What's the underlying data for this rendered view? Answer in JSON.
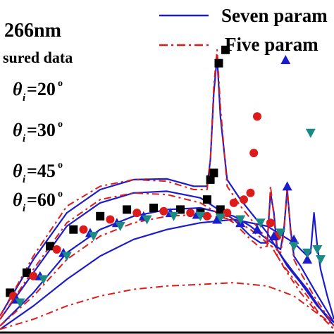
{
  "chart_data": {
    "type": "line",
    "title": "",
    "xlabel": "",
    "ylabel": "",
    "xlim": [
      0,
      100
    ],
    "ylim": [
      0,
      100
    ],
    "grid": false,
    "legend_placement": "top-right",
    "texts": {
      "wavelength": "266nm",
      "measured": "sured data",
      "legend_seven": "Seven  param",
      "legend_five": "Five  param"
    },
    "angle_labels": [
      {
        "symbol": "θ",
        "sub": "i",
        "value": "=20",
        "sup": "o"
      },
      {
        "symbol": "θ",
        "sub": "i",
        "value": "=30",
        "sup": "o"
      },
      {
        "symbol": "θ",
        "sub": "i",
        "value": "=45",
        "sup": "o"
      },
      {
        "symbol": "θ",
        "sub": "i",
        "value": "=60",
        "sup": "o"
      }
    ],
    "colors": {
      "seven": "#1c1ccc",
      "five": "#dd1b1b",
      "m20": "#000000",
      "m30": "#dd1b1b",
      "m45": "#1c1ccc",
      "m60": "#1a8a85"
    },
    "series": [
      {
        "name": "Seven  param",
        "style": "solid",
        "curves": [
          {
            "angle": 20,
            "x": [
              0,
              10,
              20,
              30,
              40,
              50,
              58,
              62,
              63,
              64,
              65,
              66,
              68,
              72,
              80,
              86,
              90,
              95,
              100
            ],
            "y": [
              5,
              22,
              36,
              43,
              46,
              46.2,
              44,
              44,
              52,
              72,
              83,
              65,
              46,
              40,
              30,
              20,
              15,
              8,
              3
            ]
          },
          {
            "angle": 30,
            "x": [
              0,
              10,
              20,
              30,
              40,
              50,
              60,
              70,
              75,
              78,
              80,
              81,
              82,
              83,
              85,
              88,
              92,
              96,
              100
            ],
            "y": [
              4,
              18,
              32,
              39,
              42,
              42.5,
              40.5,
              34,
              29,
              27,
              27,
              42,
              36,
              25,
              22,
              18,
              13,
              7,
              2
            ]
          },
          {
            "angle": 45,
            "x": [
              0,
              10,
              20,
              30,
              40,
              50,
              60,
              70,
              75,
              80,
              84,
              85,
              86,
              87,
              88,
              90,
              94,
              100
            ],
            "y": [
              2,
              12,
              24,
              31,
              35,
              37,
              37.5,
              35,
              32,
              28,
              25,
              31,
              43,
              31,
              23,
              20,
              13,
              3
            ]
          },
          {
            "angle": 60,
            "x": [
              0,
              10,
              20,
              30,
              40,
              50,
              60,
              70,
              80,
              88,
              92,
              93,
              94,
              95,
              96,
              98,
              100
            ],
            "y": [
              1,
              8,
              16,
              23,
              28,
              31,
              33,
              34,
              32,
              27,
              23,
              24,
              36,
              26,
              19,
              11,
              4
            ]
          }
        ]
      },
      {
        "name": "Five  param",
        "style": "dash-dot",
        "curves": [
          {
            "angle": 20,
            "x": [
              0,
              10,
              20,
              30,
              40,
              50,
              58,
              62,
              63,
              64,
              65,
              66,
              68,
              72,
              80,
              86,
              90,
              95,
              100
            ],
            "y": [
              5,
              23,
              38,
              44,
              46,
              45.5,
              43,
              43,
              52,
              74,
              85,
              68,
              44,
              38,
              28,
              18,
              12,
              6,
              2
            ]
          },
          {
            "angle": 30,
            "x": [
              0,
              10,
              20,
              30,
              40,
              50,
              60,
              70,
              75,
              78,
              80,
              81,
              82,
              83,
              85,
              88,
              92,
              96,
              100
            ],
            "y": [
              4,
              19,
              33,
              40,
              42,
              41.5,
              39,
              33,
              28,
              25.5,
              26,
              44,
              35,
              23,
              20,
              16,
              11,
              5,
              1
            ]
          },
          {
            "angle": 45,
            "x": [
              0,
              10,
              20,
              30,
              40,
              50,
              60,
              70,
              75,
              80,
              84,
              85,
              86,
              87,
              88,
              90,
              94,
              100
            ],
            "y": [
              2,
              11,
              22,
              29,
              33,
              35,
              35.5,
              34,
              31,
              27,
              24,
              30,
              44,
              30,
              22,
              18,
              11,
              2
            ]
          },
          {
            "angle": 60,
            "x": [
              0,
              10,
              20,
              30,
              40,
              50,
              60,
              70,
              80,
              88,
              92,
              96,
              100
            ],
            "y": [
              1,
              4,
              8,
              11,
              13,
              14,
              14.5,
              15,
              14,
              11,
              8,
              5,
              1
            ]
          }
        ]
      }
    ],
    "measured": [
      {
        "angle": 20,
        "marker": "square",
        "points": [
          [
            3,
            12
          ],
          [
            8,
            18
          ],
          [
            15,
            26
          ],
          [
            22,
            31
          ],
          [
            30,
            35
          ],
          [
            38,
            37
          ],
          [
            46,
            37.5
          ],
          [
            54,
            37
          ],
          [
            60,
            36
          ],
          [
            62,
            40
          ],
          [
            63,
            46
          ],
          [
            64,
            48
          ],
          [
            66,
            37
          ],
          [
            65.5,
            81
          ],
          [
            67.5,
            85
          ]
        ]
      },
      {
        "angle": 30,
        "marker": "circle",
        "points": [
          [
            4,
            11
          ],
          [
            10,
            17
          ],
          [
            17,
            25
          ],
          [
            25,
            31
          ],
          [
            33,
            34
          ],
          [
            41,
            36
          ],
          [
            49,
            36.5
          ],
          [
            57,
            36
          ],
          [
            62,
            35
          ],
          [
            68,
            36
          ],
          [
            70,
            39
          ],
          [
            73,
            40
          ],
          [
            75,
            42
          ],
          [
            76,
            54
          ],
          [
            77,
            65
          ],
          [
            81,
            33
          ],
          [
            83,
            29
          ]
        ]
      },
      {
        "angle": 45,
        "marker": "triangle-up",
        "points": [
          [
            5,
            10
          ],
          [
            12,
            17
          ],
          [
            19,
            24
          ],
          [
            27,
            30
          ],
          [
            35,
            33
          ],
          [
            43,
            35
          ],
          [
            51,
            36
          ],
          [
            59,
            35.5
          ],
          [
            65,
            34
          ],
          [
            72,
            33
          ],
          [
            77,
            31
          ],
          [
            82,
            29
          ],
          [
            86,
            44
          ],
          [
            88,
            28
          ],
          [
            92,
            22
          ],
          [
            85.5,
            82
          ]
        ]
      },
      {
        "angle": 60,
        "marker": "triangle-down",
        "points": [
          [
            6,
            9
          ],
          [
            13,
            16
          ],
          [
            20,
            23
          ],
          [
            28,
            29
          ],
          [
            36,
            32
          ],
          [
            44,
            34
          ],
          [
            52,
            35
          ],
          [
            60,
            35
          ],
          [
            66,
            34.5
          ],
          [
            72,
            34
          ],
          [
            78,
            33
          ],
          [
            84,
            30
          ],
          [
            88,
            26
          ],
          [
            92,
            24
          ],
          [
            95,
            25
          ],
          [
            96,
            22
          ],
          [
            93,
            60
          ]
        ]
      }
    ]
  }
}
